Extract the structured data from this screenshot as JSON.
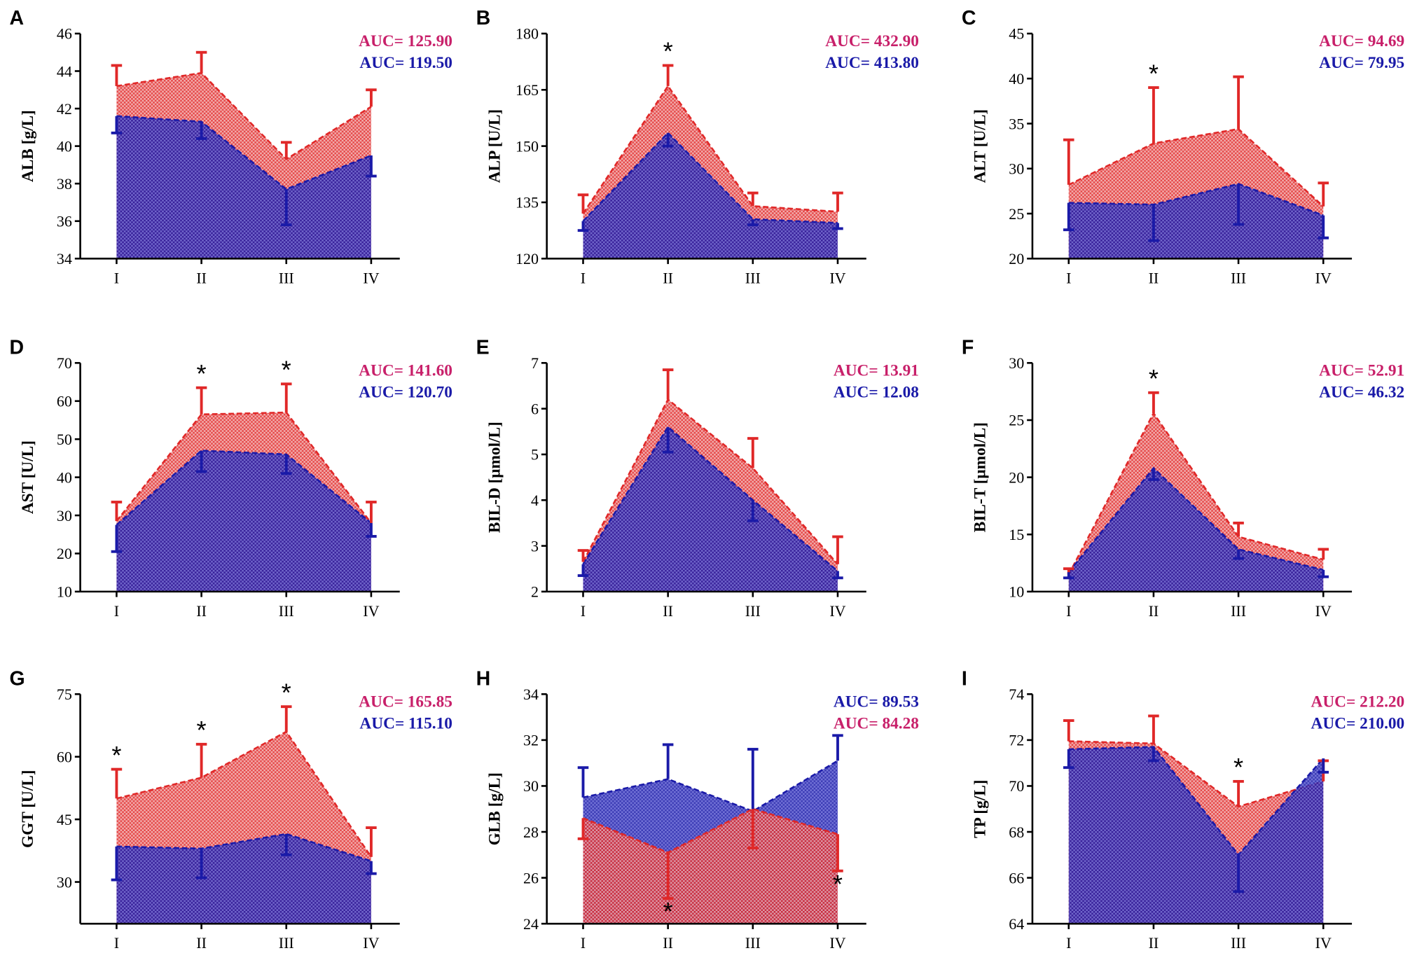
{
  "chart_data": [
    {
      "type": "area",
      "letter": "A",
      "y_label": "ALB [g/L]",
      "categories": [
        "I",
        "II",
        "III",
        "IV"
      ],
      "ylim": [
        34,
        46
      ],
      "yticks": [
        34,
        36,
        38,
        40,
        42,
        44,
        46
      ],
      "series": [
        {
          "color": "#e02828",
          "values": [
            43.2,
            43.9,
            39.3,
            42.1
          ],
          "errors": [
            1.1,
            1.1,
            0.9,
            0.9
          ],
          "error_side": "above",
          "auc": "AUC= 125.90",
          "auc_color": "#c8206a"
        },
        {
          "color": "#1a1aa8",
          "values": [
            41.6,
            41.3,
            37.7,
            39.5
          ],
          "errors": [
            0.9,
            0.9,
            1.9,
            1.1
          ],
          "error_side": "below",
          "auc": "AUC= 119.50",
          "auc_color": "#1a1aa8"
        }
      ],
      "annotations": []
    },
    {
      "type": "area",
      "letter": "B",
      "y_label": "ALP [U/L]",
      "categories": [
        "I",
        "II",
        "III",
        "IV"
      ],
      "ylim": [
        120,
        180
      ],
      "yticks": [
        120,
        135,
        150,
        165,
        180
      ],
      "series": [
        {
          "color": "#e02828",
          "values": [
            132,
            166,
            134,
            132.5
          ],
          "errors": [
            5,
            5.5,
            3.5,
            5
          ],
          "error_side": "above",
          "auc": "AUC= 432.90",
          "auc_color": "#c8206a"
        },
        {
          "color": "#1a1aa8",
          "values": [
            130,
            153.5,
            130.5,
            129.5
          ],
          "errors": [
            2.5,
            3.5,
            1.5,
            1.5
          ],
          "error_side": "below",
          "auc": "AUC= 413.80",
          "auc_color": "#1a1aa8"
        }
      ],
      "annotations": [
        {
          "text": "*",
          "category": 1,
          "side": "above"
        }
      ]
    },
    {
      "type": "area",
      "letter": "C",
      "y_label": "ALT [U/L]",
      "categories": [
        "I",
        "II",
        "III",
        "IV"
      ],
      "ylim": [
        20,
        45
      ],
      "yticks": [
        20,
        25,
        30,
        35,
        40,
        45
      ],
      "series": [
        {
          "color": "#e02828",
          "values": [
            28.2,
            32.8,
            34.4,
            25.8
          ],
          "errors": [
            5,
            6.2,
            5.8,
            2.6
          ],
          "error_side": "above",
          "auc": "AUC= 94.69",
          "auc_color": "#c8206a"
        },
        {
          "color": "#1a1aa8",
          "values": [
            26.2,
            26.0,
            28.3,
            24.8
          ],
          "errors": [
            3,
            4,
            4.5,
            2.5
          ],
          "error_side": "below",
          "auc": "AUC= 79.95",
          "auc_color": "#1a1aa8"
        }
      ],
      "annotations": [
        {
          "text": "*",
          "category": 1,
          "side": "above"
        }
      ]
    },
    {
      "type": "area",
      "letter": "D",
      "y_label": "AST [U/L]",
      "categories": [
        "I",
        "II",
        "III",
        "IV"
      ],
      "ylim": [
        10,
        70
      ],
      "yticks": [
        10,
        20,
        30,
        40,
        50,
        60,
        70
      ],
      "series": [
        {
          "color": "#e02828",
          "values": [
            28.5,
            56.5,
            57,
            28
          ],
          "errors": [
            5,
            7,
            7.5,
            5.5
          ],
          "error_side": "above",
          "auc": "AUC= 141.60",
          "auc_color": "#c8206a"
        },
        {
          "color": "#1a1aa8",
          "values": [
            27.5,
            47,
            46,
            28
          ],
          "errors": [
            7,
            5.5,
            5,
            3.5
          ],
          "error_side": "below",
          "auc": "AUC= 120.70",
          "auc_color": "#1a1aa8"
        }
      ],
      "annotations": [
        {
          "text": "*",
          "category": 1,
          "side": "above"
        },
        {
          "text": "*",
          "category": 2,
          "side": "above"
        }
      ]
    },
    {
      "type": "area",
      "letter": "E",
      "y_label": "BIL-D [μmol/L]",
      "categories": [
        "I",
        "II",
        "III",
        "IV"
      ],
      "ylim": [
        2,
        7
      ],
      "yticks": [
        2,
        3,
        4,
        5,
        6,
        7
      ],
      "series": [
        {
          "color": "#e02828",
          "values": [
            2.65,
            6.2,
            4.7,
            2.6
          ],
          "errors": [
            0.25,
            0.65,
            0.65,
            0.6
          ],
          "error_side": "above",
          "auc": "AUC= 13.91",
          "auc_color": "#c8206a"
        },
        {
          "color": "#1a1aa8",
          "values": [
            2.6,
            5.6,
            4.0,
            2.45
          ],
          "errors": [
            0.25,
            0.55,
            0.45,
            0.15
          ],
          "error_side": "below",
          "auc": "AUC= 12.08",
          "auc_color": "#1a1aa8"
        }
      ],
      "annotations": []
    },
    {
      "type": "area",
      "letter": "F",
      "y_label": "BIL-T [μmol/L]",
      "categories": [
        "I",
        "II",
        "III",
        "IV"
      ],
      "ylim": [
        10,
        30
      ],
      "yticks": [
        10,
        15,
        20,
        25,
        30
      ],
      "series": [
        {
          "color": "#e02828",
          "values": [
            11.5,
            25.6,
            14.8,
            12.8
          ],
          "errors": [
            0.5,
            1.8,
            1.2,
            0.9
          ],
          "error_side": "above",
          "auc": "AUC= 52.91",
          "auc_color": "#c8206a"
        },
        {
          "color": "#1a1aa8",
          "values": [
            11.7,
            20.8,
            13.7,
            11.9
          ],
          "errors": [
            0.5,
            1.0,
            0.8,
            0.6
          ],
          "error_side": "below",
          "auc": "AUC= 46.32",
          "auc_color": "#1a1aa8"
        }
      ],
      "annotations": [
        {
          "text": "*",
          "category": 1,
          "side": "above"
        }
      ]
    },
    {
      "type": "area",
      "letter": "G",
      "y_label": "GGT [U/L]",
      "categories": [
        "I",
        "II",
        "III",
        "IV"
      ],
      "ylim": [
        20,
        75
      ],
      "yticks": [
        30,
        45,
        60,
        75
      ],
      "series": [
        {
          "color": "#e02828",
          "values": [
            50,
            55,
            66,
            36
          ],
          "errors": [
            7,
            8,
            6,
            7
          ],
          "error_side": "above",
          "auc": "AUC= 165.85",
          "auc_color": "#c8206a"
        },
        {
          "color": "#1a1aa8",
          "values": [
            38.5,
            38,
            41.5,
            35
          ],
          "errors": [
            8,
            7,
            5,
            3
          ],
          "error_side": "below",
          "auc": "AUC= 115.10",
          "auc_color": "#1a1aa8"
        }
      ],
      "annotations": [
        {
          "text": "*",
          "category": 0,
          "side": "above"
        },
        {
          "text": "*",
          "category": 1,
          "side": "above"
        },
        {
          "text": "*",
          "category": 2,
          "side": "above"
        }
      ]
    },
    {
      "type": "area",
      "letter": "H",
      "y_label": "GLB [g/L]",
      "categories": [
        "I",
        "II",
        "III",
        "IV"
      ],
      "ylim": [
        24,
        34
      ],
      "yticks": [
        24,
        26,
        28,
        30,
        32,
        34
      ],
      "series": [
        {
          "color": "#1a1aa8",
          "values": [
            29.5,
            30.3,
            28.9,
            31.1
          ],
          "errors": [
            1.3,
            1.5,
            2.7,
            1.1
          ],
          "error_side": "above",
          "auc": "AUC= 89.53",
          "auc_color": "#1a1aa8"
        },
        {
          "color": "#e02828",
          "values": [
            28.6,
            27.1,
            29.0,
            27.9
          ],
          "errors": [
            0.9,
            2.0,
            1.7,
            1.6
          ],
          "error_side": "below",
          "auc": "AUC= 84.28",
          "auc_color": "#c8206a"
        }
      ],
      "annotations": [
        {
          "text": "*",
          "category": 1,
          "side": "below"
        },
        {
          "text": "*",
          "category": 3,
          "side": "below"
        }
      ]
    },
    {
      "type": "area",
      "letter": "I",
      "y_label": "TP [g/L]",
      "categories": [
        "I",
        "II",
        "III",
        "IV"
      ],
      "ylim": [
        64,
        74
      ],
      "yticks": [
        64,
        66,
        68,
        70,
        72,
        74
      ],
      "series": [
        {
          "color": "#e02828",
          "values": [
            71.95,
            71.85,
            69.1,
            70.2
          ],
          "errors": [
            0.9,
            1.2,
            1.1,
            0.9
          ],
          "error_side": "above",
          "auc": "AUC= 212.20",
          "auc_color": "#c8206a"
        },
        {
          "color": "#1a1aa8",
          "values": [
            71.6,
            71.7,
            67.0,
            71.2
          ],
          "errors": [
            0.8,
            0.6,
            1.6,
            0.6
          ],
          "error_side": "below",
          "auc": "AUC= 210.00",
          "auc_color": "#1a1aa8"
        }
      ],
      "annotations": [
        {
          "text": "*",
          "category": 2,
          "side": "above"
        }
      ]
    }
  ]
}
